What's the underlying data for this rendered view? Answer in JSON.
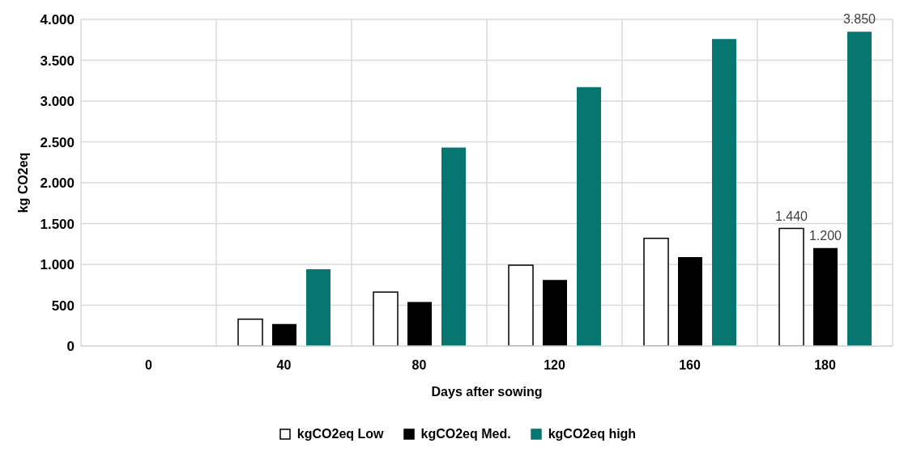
{
  "chart_data": {
    "type": "bar",
    "xlabel": "Days after sowing",
    "ylabel": "kg CO2eq",
    "categories": [
      "0",
      "40",
      "80",
      "120",
      "160",
      "180"
    ],
    "series": [
      {
        "name": "kgCO2eq Low",
        "color": "#ffffff",
        "values": [
          0,
          330,
          660,
          990,
          1320,
          1440
        ],
        "value_labels": [
          null,
          null,
          null,
          null,
          null,
          "1.440"
        ]
      },
      {
        "name": "kgCO2eq Med.",
        "color": "#000000",
        "values": [
          0,
          270,
          540,
          810,
          1090,
          1200
        ],
        "value_labels": [
          null,
          null,
          null,
          null,
          null,
          "1.200"
        ]
      },
      {
        "name": "kgCO2eq high",
        "color": "#077570",
        "values": [
          0,
          940,
          2430,
          3170,
          3760,
          3850
        ],
        "value_labels": [
          null,
          null,
          null,
          null,
          null,
          "3.850"
        ]
      }
    ],
    "ylim": [
      0,
      4000
    ],
    "yticks": [
      0,
      {
        "value": 500,
        "label": "500"
      },
      {
        "value": 1000,
        "label": "1.000"
      },
      {
        "value": 1500,
        "label": "1.500"
      },
      {
        "value": 2000,
        "label": "2.000"
      },
      {
        "value": 2500,
        "label": "2.500"
      },
      {
        "value": 3000,
        "label": "3.000"
      },
      {
        "value": 3500,
        "label": "3.500"
      },
      {
        "value": 4000,
        "label": "4.000"
      }
    ],
    "grid": true,
    "legend": "bottom"
  }
}
